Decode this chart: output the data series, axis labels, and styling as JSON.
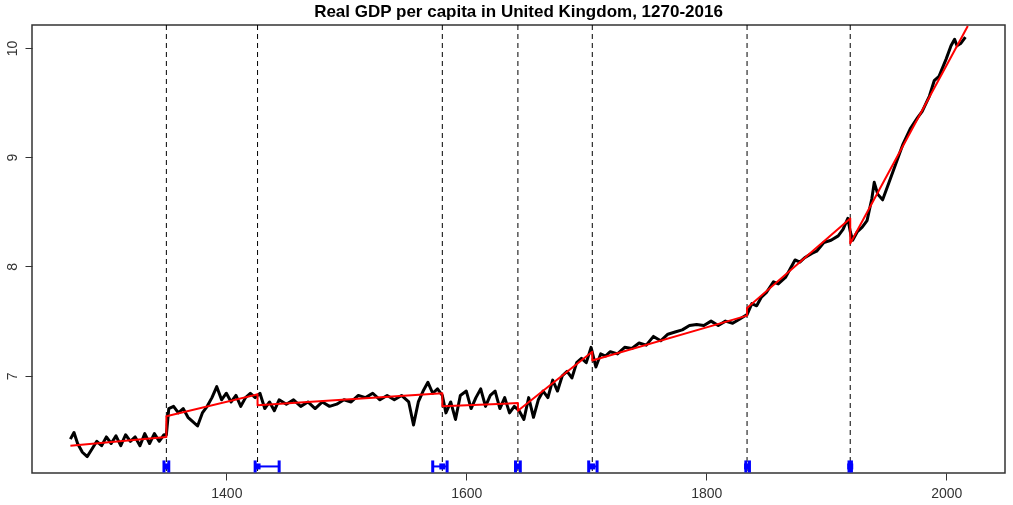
{
  "chart_data": {
    "type": "line",
    "title": "Real GDP per capita in United Kingdom, 1270-2016",
    "xlim": [
      1238,
      2049
    ],
    "ylim": [
      6.11,
      10.21
    ],
    "xticks": [
      1400,
      1600,
      1800,
      2000
    ],
    "yticks": [
      7,
      8,
      9,
      10
    ],
    "grid": false,
    "line_style": "solid",
    "marker": "none",
    "series": [
      {
        "color": "#000000",
        "x": [
          1270,
          1273,
          1276,
          1280,
          1284,
          1288,
          1292,
          1296,
          1300,
          1304,
          1308,
          1312,
          1316,
          1320,
          1324,
          1328,
          1332,
          1336,
          1340,
          1344,
          1348,
          1350,
          1352,
          1356,
          1360,
          1364,
          1368,
          1372,
          1376,
          1380,
          1384,
          1388,
          1392,
          1396,
          1400,
          1404,
          1408,
          1412,
          1416,
          1420,
          1424,
          1428,
          1432,
          1436,
          1440,
          1444,
          1450,
          1456,
          1462,
          1468,
          1474,
          1480,
          1486,
          1492,
          1498,
          1504,
          1510,
          1516,
          1522,
          1528,
          1534,
          1540,
          1546,
          1552,
          1556,
          1560,
          1564,
          1568,
          1572,
          1576,
          1580,
          1583,
          1587,
          1591,
          1595,
          1600,
          1604,
          1608,
          1612,
          1616,
          1620,
          1624,
          1628,
          1632,
          1636,
          1640,
          1644,
          1648,
          1652,
          1656,
          1660,
          1664,
          1668,
          1672,
          1676,
          1680,
          1684,
          1688,
          1692,
          1696,
          1700,
          1704,
          1708,
          1712,
          1716,
          1720,
          1726,
          1732,
          1738,
          1744,
          1750,
          1756,
          1762,
          1768,
          1774,
          1780,
          1786,
          1792,
          1798,
          1804,
          1810,
          1816,
          1822,
          1828,
          1834,
          1838,
          1842,
          1846,
          1850,
          1856,
          1860,
          1866,
          1870,
          1874,
          1878,
          1882,
          1888,
          1892,
          1898,
          1904,
          1910,
          1914,
          1918,
          1920,
          1922,
          1926,
          1930,
          1934,
          1938,
          1940,
          1943,
          1947,
          1952,
          1958,
          1964,
          1970,
          1976,
          1980,
          1986,
          1990,
          1994,
          2000,
          2004,
          2007,
          2009,
          2012,
          2016
        ],
        "values": [
          6.42,
          6.48,
          6.38,
          6.3,
          6.26,
          6.33,
          6.4,
          6.36,
          6.44,
          6.38,
          6.45,
          6.36,
          6.46,
          6.4,
          6.44,
          6.36,
          6.47,
          6.38,
          6.47,
          6.4,
          6.46,
          6.46,
          6.7,
          6.72,
          6.66,
          6.7,
          6.62,
          6.58,
          6.54,
          6.66,
          6.72,
          6.8,
          6.9,
          6.78,
          6.84,
          6.76,
          6.82,
          6.72,
          6.8,
          6.84,
          6.8,
          6.84,
          6.7,
          6.76,
          6.68,
          6.78,
          6.74,
          6.78,
          6.72,
          6.76,
          6.7,
          6.76,
          6.72,
          6.74,
          6.78,
          6.76,
          6.82,
          6.8,
          6.84,
          6.78,
          6.82,
          6.78,
          6.82,
          6.76,
          6.55,
          6.76,
          6.86,
          6.94,
          6.84,
          6.88,
          6.82,
          6.66,
          6.76,
          6.6,
          6.82,
          6.86,
          6.7,
          6.8,
          6.88,
          6.72,
          6.82,
          6.86,
          6.7,
          6.8,
          6.66,
          6.72,
          6.68,
          6.6,
          6.8,
          6.62,
          6.78,
          6.86,
          6.8,
          6.96,
          6.86,
          7.0,
          7.04,
          6.98,
          7.12,
          7.16,
          7.12,
          7.26,
          7.08,
          7.2,
          7.18,
          7.22,
          7.2,
          7.26,
          7.25,
          7.3,
          7.28,
          7.36,
          7.32,
          7.38,
          7.4,
          7.42,
          7.46,
          7.47,
          7.46,
          7.5,
          7.46,
          7.5,
          7.48,
          7.52,
          7.56,
          7.66,
          7.64,
          7.72,
          7.76,
          7.86,
          7.84,
          7.9,
          7.98,
          8.06,
          8.04,
          8.08,
          8.12,
          8.14,
          8.22,
          8.24,
          8.28,
          8.34,
          8.44,
          8.32,
          8.24,
          8.32,
          8.36,
          8.42,
          8.62,
          8.77,
          8.66,
          8.61,
          8.76,
          8.94,
          9.12,
          9.26,
          9.36,
          9.42,
          9.56,
          9.7,
          9.74,
          9.9,
          10.02,
          10.08,
          10.02,
          10.04,
          10.1
        ]
      },
      {
        "color": "#ff0000",
        "x": [
          1270,
          1350,
          1350,
          1426,
          1426,
          1580,
          1580,
          1643,
          1643,
          1705,
          1705,
          1834,
          1834,
          1920,
          1920,
          2018
        ],
        "values": [
          6.36,
          6.44,
          6.63,
          6.83,
          6.73,
          6.84,
          6.72,
          6.75,
          6.68,
          7.22,
          7.14,
          7.55,
          7.62,
          8.44,
          8.21,
          10.2
        ]
      },
      {
        "type": "scatter",
        "color": "#0000ff",
        "marker": "square",
        "x": [
          1350,
          1426,
          1580,
          1643,
          1705,
          1834,
          1920
        ],
        "values": [
          6.17,
          6.17,
          6.17,
          6.17,
          6.17,
          6.17,
          6.17
        ],
        "xerrors": [
          [
            1348,
            1352
          ],
          [
            1424,
            1444
          ],
          [
            1572,
            1584
          ],
          [
            1641,
            1645
          ],
          [
            1702,
            1709
          ],
          [
            1833,
            1836
          ],
          [
            1919,
            1921
          ]
        ]
      }
    ],
    "ref_lines": [
      {
        "axis": "x",
        "value": 1350,
        "color": "#000000",
        "line_style": "dashed"
      },
      {
        "axis": "x",
        "value": 1426,
        "color": "#000000",
        "line_style": "dashed"
      },
      {
        "axis": "x",
        "value": 1580,
        "color": "#000000",
        "line_style": "dashed"
      },
      {
        "axis": "x",
        "value": 1643,
        "color": "#000000",
        "line_style": "dashed"
      },
      {
        "axis": "x",
        "value": 1705,
        "color": "#000000",
        "line_style": "dashed"
      },
      {
        "axis": "x",
        "value": 1834,
        "color": "#000000",
        "line_style": "dashed"
      },
      {
        "axis": "x",
        "value": 1920,
        "color": "#000000",
        "line_style": "dashed"
      }
    ]
  }
}
